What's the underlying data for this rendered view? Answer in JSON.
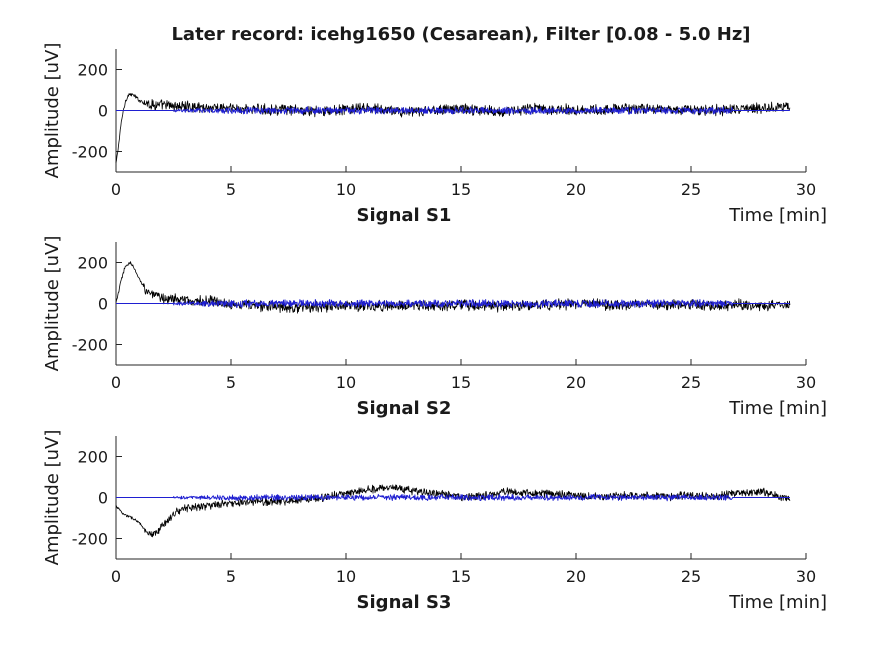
{
  "figure": {
    "title": "Later record: icehg1650 (Cesarean), Filter [0.08 - 5.0 Hz]"
  },
  "chart_data": [
    {
      "type": "line",
      "title": "Signal S1",
      "xlabel": "Time [min]",
      "ylabel": "Amplitude [uV]",
      "xlim": [
        0,
        30
      ],
      "ylim": [
        -300,
        300
      ],
      "xticks": [
        "0",
        "5",
        "10",
        "15",
        "20",
        "25",
        "30"
      ],
      "yticks": [
        "-200",
        "0",
        "200"
      ],
      "grid": false,
      "series": [
        {
          "color": "#000000",
          "x": [
            0,
            0.1,
            0.25,
            0.4,
            0.5,
            0.6,
            0.8,
            1.0,
            1.5,
            2,
            3,
            4,
            5,
            6,
            7,
            8,
            9,
            10,
            11,
            12,
            13,
            14,
            15,
            16,
            17,
            18,
            19,
            20,
            21,
            22,
            23,
            24,
            25,
            26,
            27,
            28,
            29,
            29.3
          ],
          "y": [
            -260,
            -180,
            -40,
            40,
            70,
            80,
            72,
            50,
            30,
            25,
            20,
            15,
            10,
            5,
            5,
            0,
            -5,
            5,
            10,
            0,
            -10,
            5,
            10,
            0,
            -5,
            10,
            5,
            5,
            0,
            10,
            10,
            5,
            5,
            0,
            5,
            10,
            20,
            20
          ],
          "noise": 22
        },
        {
          "color": "#1f1fd1",
          "x": [
            0,
            2.5,
            3,
            4,
            5,
            6,
            7,
            8,
            9,
            10,
            11,
            12,
            13,
            14,
            15,
            16,
            17,
            18,
            19,
            20,
            21,
            22,
            23,
            24,
            25,
            26,
            26.8,
            29.3
          ],
          "y": [
            0,
            0,
            0,
            0,
            0,
            0,
            0,
            0,
            0,
            0,
            0,
            0,
            0,
            0,
            0,
            0,
            0,
            0,
            0,
            0,
            0,
            0,
            0,
            0,
            0,
            0,
            0,
            0
          ],
          "noise": 14
        }
      ]
    },
    {
      "type": "line",
      "title": "Signal S2",
      "xlabel": "Time [min]",
      "ylabel": "Amplitude [uV]",
      "xlim": [
        0,
        30
      ],
      "ylim": [
        -300,
        300
      ],
      "xticks": [
        "0",
        "5",
        "10",
        "15",
        "20",
        "25",
        "30"
      ],
      "yticks": [
        "-200",
        "0",
        "200"
      ],
      "grid": false,
      "series": [
        {
          "color": "#000000",
          "x": [
            0,
            0.2,
            0.4,
            0.6,
            0.8,
            1.0,
            1.3,
            1.6,
            2,
            2.5,
            3,
            4,
            5,
            6,
            7,
            8,
            9,
            10,
            11,
            12,
            13,
            14,
            15,
            16,
            17,
            18,
            19,
            20,
            21,
            22,
            23,
            24,
            25,
            26,
            27,
            28,
            29,
            29.3
          ],
          "y": [
            0,
            100,
            180,
            200,
            170,
            120,
            70,
            40,
            25,
            25,
            15,
            10,
            0,
            -10,
            -15,
            -20,
            -15,
            -10,
            -15,
            -10,
            -10,
            -15,
            -10,
            -10,
            -15,
            -10,
            -5,
            0,
            -5,
            -10,
            -5,
            -10,
            -5,
            -10,
            -5,
            -10,
            -10,
            -5
          ],
          "noise": 22
        },
        {
          "color": "#1f1fd1",
          "x": [
            0,
            2.5,
            3,
            4,
            5,
            6,
            7,
            8,
            9,
            10,
            11,
            12,
            13,
            14,
            15,
            16,
            17,
            18,
            19,
            20,
            21,
            22,
            23,
            24,
            25,
            26,
            26.8,
            29.3
          ],
          "y": [
            0,
            0,
            0,
            0,
            0,
            0,
            0,
            0,
            0,
            0,
            0,
            0,
            0,
            0,
            0,
            0,
            0,
            0,
            0,
            0,
            0,
            0,
            0,
            0,
            0,
            0,
            0,
            0
          ],
          "noise": 15
        }
      ]
    },
    {
      "type": "line",
      "title": "Signal S3",
      "xlabel": "Time [min]",
      "ylabel": "Amplitude [uV]",
      "xlim": [
        0,
        30
      ],
      "ylim": [
        -300,
        300
      ],
      "xticks": [
        "0",
        "5",
        "10",
        "15",
        "20",
        "25",
        "30"
      ],
      "yticks": [
        "-200",
        "0",
        "200"
      ],
      "grid": false,
      "series": [
        {
          "color": "#000000",
          "x": [
            0,
            0.3,
            0.7,
            1.0,
            1.3,
            1.6,
            2.0,
            2.5,
            3,
            4,
            5,
            6,
            7,
            8,
            9,
            10,
            11,
            12,
            13,
            14,
            15,
            16,
            17,
            18,
            19,
            20,
            21,
            22,
            23,
            24,
            25,
            26,
            27,
            28,
            29,
            29.3
          ],
          "y": [
            -40,
            -80,
            -100,
            -120,
            -170,
            -190,
            -140,
            -80,
            -50,
            -40,
            -30,
            -20,
            -20,
            -10,
            0,
            20,
            40,
            50,
            30,
            20,
            0,
            10,
            30,
            20,
            20,
            10,
            0,
            10,
            10,
            5,
            10,
            5,
            20,
            30,
            0,
            0
          ],
          "noise": 16
        },
        {
          "color": "#1f1fd1",
          "x": [
            0,
            2.5,
            3,
            4,
            5,
            6,
            7,
            8,
            9,
            10,
            11,
            12,
            13,
            14,
            15,
            16,
            17,
            18,
            19,
            20,
            21,
            22,
            23,
            24,
            25,
            26,
            26.8,
            29.3
          ],
          "y": [
            0,
            0,
            0,
            0,
            0,
            0,
            0,
            0,
            0,
            0,
            0,
            0,
            0,
            0,
            0,
            0,
            0,
            0,
            0,
            0,
            0,
            0,
            0,
            0,
            0,
            0,
            0,
            0
          ],
          "noise": 12
        }
      ]
    }
  ]
}
